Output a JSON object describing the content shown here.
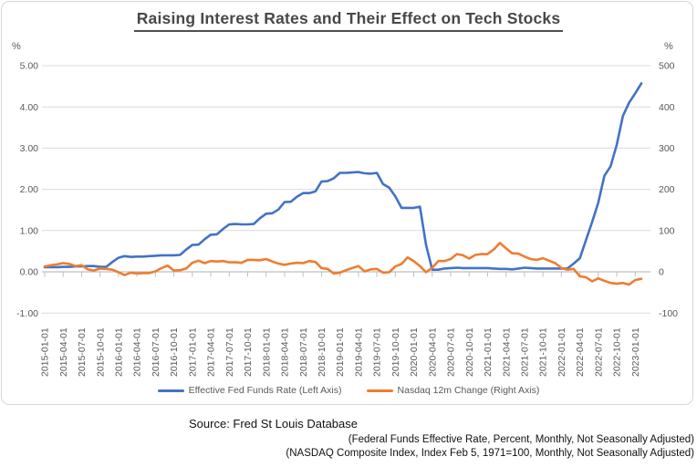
{
  "footer": {
    "source": "Source: Fred St Louis Database",
    "note1": "(Federal Funds Effective Rate, Percent, Monthly, Not Seasonally Adjusted)",
    "note2": "(NASDAQ Composite Index, Index Feb 5, 1971=100, Monthly, Not Seasonally Adjusted)"
  },
  "chart_data": {
    "type": "line",
    "title": "Raising Interest Rates and Their Effect on Tech Stocks",
    "grid": true,
    "legend_position": "bottom",
    "left_axis": {
      "label": "%",
      "ticks": [
        "5.00",
        "4.00",
        "3.00",
        "2.00",
        "1.00",
        "0.00",
        "-1.00"
      ],
      "range": [
        -1,
        5
      ]
    },
    "right_axis": {
      "label": "%",
      "ticks": [
        "500",
        "400",
        "300",
        "200",
        "100",
        "0",
        "-100"
      ],
      "range": [
        -100,
        500
      ]
    },
    "x_tick_labels": [
      "2015-01-01",
      "2015-04-01",
      "2015-07-01",
      "2015-10-01",
      "2016-01-01",
      "2016-04-01",
      "2016-07-01",
      "2016-10-01",
      "2017-01-01",
      "2017-04-01",
      "2017-07-01",
      "2017-10-01",
      "2018-01-01",
      "2018-04-01",
      "2018-07-01",
      "2018-10-01",
      "2019-01-01",
      "2019-04-01",
      "2019-07-01",
      "2019-10-01",
      "2020-01-01",
      "2020-04-01",
      "2020-07-01",
      "2020-10-01",
      "2021-01-01",
      "2021-04-01",
      "2021-07-01",
      "2021-10-01",
      "2022-01-01",
      "2022-04-01",
      "2022-07-01",
      "2022-10-01",
      "2023-01-01"
    ],
    "months": [
      "2015-01",
      "2015-02",
      "2015-03",
      "2015-04",
      "2015-05",
      "2015-06",
      "2015-07",
      "2015-08",
      "2015-09",
      "2015-10",
      "2015-11",
      "2015-12",
      "2016-01",
      "2016-02",
      "2016-03",
      "2016-04",
      "2016-05",
      "2016-06",
      "2016-07",
      "2016-08",
      "2016-09",
      "2016-10",
      "2016-11",
      "2016-12",
      "2017-01",
      "2017-02",
      "2017-03",
      "2017-04",
      "2017-05",
      "2017-06",
      "2017-07",
      "2017-08",
      "2017-09",
      "2017-10",
      "2017-11",
      "2017-12",
      "2018-01",
      "2018-02",
      "2018-03",
      "2018-04",
      "2018-05",
      "2018-06",
      "2018-07",
      "2018-08",
      "2018-09",
      "2018-10",
      "2018-11",
      "2018-12",
      "2019-01",
      "2019-02",
      "2019-03",
      "2019-04",
      "2019-05",
      "2019-06",
      "2019-07",
      "2019-08",
      "2019-09",
      "2019-10",
      "2019-11",
      "2019-12",
      "2020-01",
      "2020-02",
      "2020-03",
      "2020-04",
      "2020-05",
      "2020-06",
      "2020-07",
      "2020-08",
      "2020-09",
      "2020-10",
      "2020-11",
      "2020-12",
      "2021-01",
      "2021-02",
      "2021-03",
      "2021-04",
      "2021-05",
      "2021-06",
      "2021-07",
      "2021-08",
      "2021-09",
      "2021-10",
      "2021-11",
      "2021-12",
      "2022-01",
      "2022-02",
      "2022-03",
      "2022-04",
      "2022-05",
      "2022-06",
      "2022-07",
      "2022-08",
      "2022-09",
      "2022-10",
      "2022-11",
      "2022-12",
      "2023-01",
      "2023-02"
    ],
    "series": [
      {
        "name": "Effective Fed Funds Rate (Left Axis)",
        "axis": "left",
        "color": "#4472C4",
        "values": [
          0.11,
          0.11,
          0.11,
          0.12,
          0.12,
          0.13,
          0.13,
          0.14,
          0.14,
          0.12,
          0.12,
          0.24,
          0.34,
          0.38,
          0.36,
          0.37,
          0.37,
          0.38,
          0.39,
          0.4,
          0.4,
          0.4,
          0.41,
          0.54,
          0.65,
          0.66,
          0.79,
          0.9,
          0.91,
          1.04,
          1.15,
          1.16,
          1.15,
          1.15,
          1.16,
          1.3,
          1.41,
          1.42,
          1.51,
          1.69,
          1.7,
          1.82,
          1.91,
          1.91,
          1.95,
          2.19,
          2.2,
          2.27,
          2.4,
          2.4,
          2.41,
          2.42,
          2.39,
          2.38,
          2.4,
          2.13,
          2.04,
          1.83,
          1.55,
          1.55,
          1.55,
          1.58,
          0.65,
          0.05,
          0.05,
          0.08,
          0.09,
          0.1,
          0.09,
          0.09,
          0.09,
          0.09,
          0.09,
          0.08,
          0.07,
          0.07,
          0.06,
          0.08,
          0.1,
          0.09,
          0.08,
          0.08,
          0.08,
          0.08,
          0.08,
          0.08,
          0.2,
          0.33,
          0.77,
          1.21,
          1.68,
          2.33,
          2.56,
          3.08,
          3.78,
          4.1,
          4.33,
          4.57
        ]
      },
      {
        "name": "Nasdaq 12m Change (Right Axis)",
        "axis": "right",
        "color": "#ED7D31",
        "values": [
          13,
          16,
          18,
          21,
          19,
          14,
          16,
          6,
          3,
          8,
          7,
          5,
          -1,
          -8,
          -2,
          -4,
          -3,
          -3,
          1,
          9,
          15,
          3,
          4,
          8,
          22,
          27,
          21,
          26,
          25,
          26,
          23,
          23,
          22,
          29,
          29,
          28,
          31,
          25,
          20,
          17,
          20,
          22,
          21,
          26,
          24,
          9,
          7,
          -4,
          -2,
          4,
          9,
          14,
          1,
          6,
          7,
          -2,
          -1,
          13,
          19,
          35,
          26,
          14,
          -1,
          10,
          26,
          26,
          31,
          43,
          40,
          32,
          41,
          43,
          43,
          54,
          70,
          57,
          45,
          44,
          37,
          31,
          29,
          33,
          27,
          21,
          9,
          5,
          7,
          -11,
          -13,
          -23,
          -16,
          -22,
          -27,
          -29,
          -27,
          -31,
          -20,
          -17
        ]
      }
    ],
    "colors": {
      "gridline": "#D9D9D9",
      "axis_line": "#BFBFBF",
      "axis_text": "#595959",
      "title_text": "#484848"
    }
  }
}
